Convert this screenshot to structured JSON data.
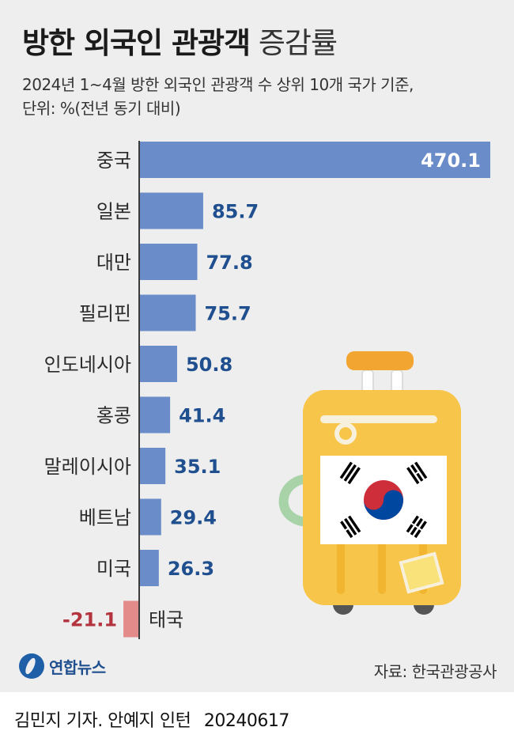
{
  "title": {
    "bold": "방한 외국인 관광객",
    "light": "증감률"
  },
  "subtitle": {
    "line1": "2024년 1~4월 방한 외국인 관광객 수 상위 10개 국가 기준,",
    "line2": "단위: %(전년 동기 대비)"
  },
  "colors": {
    "positive_bar": "#6a8cc9",
    "negative_bar": "#e38a8a",
    "positive_value": "#1f4f8f",
    "negative_value": "#b3343f",
    "axis": "#3a3a3a"
  },
  "chart_data": {
    "type": "bar",
    "orientation": "horizontal",
    "categories": [
      "중국",
      "일본",
      "대만",
      "필리핀",
      "인도네시아",
      "홍콩",
      "말레이시아",
      "베트남",
      "미국",
      "태국"
    ],
    "values": [
      470.1,
      85.7,
      77.8,
      75.7,
      50.8,
      41.4,
      35.1,
      29.4,
      26.3,
      -21.1
    ],
    "value_labels": [
      "470.1",
      "85.7",
      "77.8",
      "75.7",
      "50.8",
      "41.4",
      "35.1",
      "29.4",
      "26.3",
      "-21.1"
    ],
    "xlim": [
      -21.1,
      470.1
    ],
    "grid": false
  },
  "illustration": {
    "object": "suitcase",
    "flag": "korean-flag"
  },
  "logo": {
    "name": "연합뉴스"
  },
  "source": "자료: 한국관광공사",
  "byline": {
    "authors": "김민지 기자. 안예지 인턴",
    "date": "20240617"
  }
}
